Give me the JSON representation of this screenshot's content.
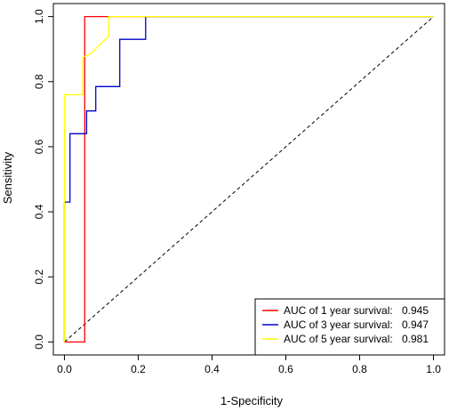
{
  "chart_data": {
    "type": "line",
    "xlabel": "1-Specificity",
    "ylabel": "Sensitivity",
    "xlim": [
      -0.03,
      1.03
    ],
    "ylim": [
      -0.04,
      1.04
    ],
    "xticks": [
      "0.0",
      "0.2",
      "0.4",
      "0.6",
      "0.8",
      "1.0"
    ],
    "yticks": [
      "0.0",
      "0.2",
      "0.4",
      "0.6",
      "0.8",
      "1.0"
    ],
    "grid": false,
    "legend_position": "bottom-right",
    "reference_line": {
      "x": [
        0,
        1
      ],
      "y": [
        0,
        1
      ],
      "style": "dashed",
      "color": "#000000"
    },
    "series": [
      {
        "name": "AUC of 1 year survival:",
        "auc": "0.945",
        "color": "#ff0000",
        "x": [
          0,
          0.055,
          0.055,
          1
        ],
        "y": [
          0,
          0,
          1,
          1
        ]
      },
      {
        "name": "AUC of 3 year survival:",
        "auc": "0.947",
        "color": "#0000cc",
        "x": [
          0,
          0,
          0.015,
          0.015,
          0.06,
          0.06,
          0.085,
          0.085,
          0.1,
          0.1,
          0.15,
          0.15,
          0.22,
          0.22,
          1
        ],
        "y": [
          0,
          0.43,
          0.43,
          0.64,
          0.64,
          0.71,
          0.71,
          0.785,
          0.785,
          0.785,
          0.785,
          0.93,
          0.93,
          1,
          1
        ]
      },
      {
        "name": "AUC of 5 year survival:",
        "auc": "0.981",
        "color": "#ffff00",
        "x": [
          0,
          0,
          0.05,
          0.05,
          0.07,
          0.12,
          0.12,
          1
        ],
        "y": [
          0,
          0.76,
          0.76,
          0.875,
          0.885,
          0.94,
          1,
          1
        ]
      }
    ]
  }
}
